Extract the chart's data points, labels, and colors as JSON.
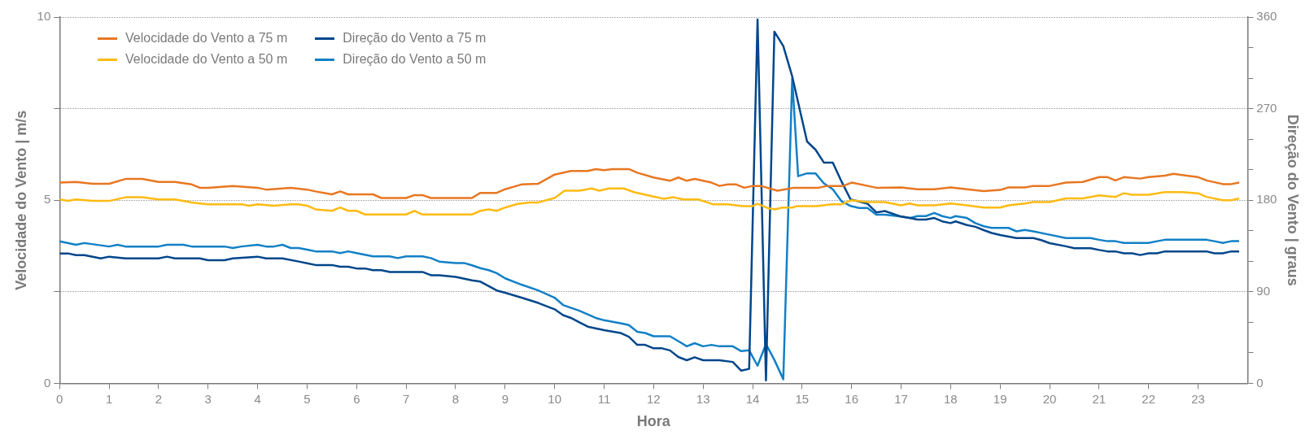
{
  "chart_data": {
    "type": "line",
    "xlabel": "Hora",
    "ylabel": "Velocidade do Vento | m/s",
    "y2label": "Direção do Vento | graus",
    "xlim": [
      0,
      24
    ],
    "xticks": [
      0,
      1,
      2,
      3,
      4,
      5,
      6,
      7,
      8,
      9,
      10,
      11,
      12,
      13,
      14,
      15,
      16,
      17,
      18,
      19,
      20,
      21,
      22,
      23
    ],
    "ylim": [
      0,
      10
    ],
    "yticks": [
      0,
      {
        "value": 2.5,
        "label": null
      },
      5,
      {
        "value": 7.5,
        "label": null
      },
      10
    ],
    "y2lim": [
      0,
      360
    ],
    "y2ticks": [
      0,
      {
        "value": 30,
        "label": null
      },
      {
        "value": 60,
        "label": null
      },
      90,
      {
        "value": 120,
        "label": null
      },
      {
        "value": 150,
        "label": null
      },
      180,
      {
        "value": 210,
        "label": null
      },
      {
        "value": 240,
        "label": null
      },
      270,
      {
        "value": 300,
        "label": null
      },
      {
        "value": 330,
        "label": null
      },
      360
    ],
    "grid": "y",
    "legend": "top left",
    "marker": "none",
    "line_style": "solid",
    "series": [
      {
        "name": "Velocidade do Vento a 75 m",
        "color": "#e87722",
        "x": [
          0,
          0.33,
          0.67,
          1,
          1.33,
          1.67,
          2,
          2.33,
          2.67,
          2.83,
          3,
          3.5,
          4,
          4.17,
          4.67,
          5,
          5.17,
          5.5,
          5.67,
          5.83,
          6,
          6.33,
          6.5,
          7,
          7.17,
          7.33,
          7.5,
          8,
          8.33,
          8.5,
          8.83,
          9,
          9.33,
          9.67,
          10,
          10.33,
          10.67,
          10.83,
          11,
          11.17,
          11.5,
          11.67,
          12,
          12.33,
          12.5,
          12.67,
          12.83,
          13,
          13.17,
          13.33,
          13.5,
          13.67,
          13.83,
          14,
          14.17,
          14.5,
          14.67,
          14.83,
          15,
          15.33,
          15.5,
          15.83,
          16,
          16.33,
          16.5,
          17,
          17.33,
          17.67,
          18,
          18.33,
          18.67,
          19,
          19.17,
          19.5,
          19.67,
          20,
          20.33,
          20.67,
          21,
          21.17,
          21.33,
          21.5,
          21.83,
          22,
          22.33,
          22.5,
          22.83,
          23,
          23.17,
          23.5,
          23.67,
          23.83
        ],
        "values": [
          5.48,
          5.5,
          5.45,
          5.45,
          5.58,
          5.58,
          5.5,
          5.5,
          5.43,
          5.34,
          5.34,
          5.39,
          5.34,
          5.29,
          5.34,
          5.29,
          5.24,
          5.16,
          5.24,
          5.16,
          5.16,
          5.16,
          5.06,
          5.06,
          5.14,
          5.14,
          5.06,
          5.06,
          5.06,
          5.2,
          5.2,
          5.3,
          5.43,
          5.45,
          5.7,
          5.8,
          5.8,
          5.85,
          5.82,
          5.85,
          5.85,
          5.75,
          5.62,
          5.53,
          5.62,
          5.53,
          5.58,
          5.53,
          5.48,
          5.39,
          5.43,
          5.43,
          5.34,
          5.39,
          5.39,
          5.26,
          5.3,
          5.34,
          5.34,
          5.34,
          5.39,
          5.39,
          5.48,
          5.39,
          5.34,
          5.35,
          5.3,
          5.3,
          5.35,
          5.3,
          5.25,
          5.28,
          5.35,
          5.35,
          5.39,
          5.39,
          5.48,
          5.5,
          5.63,
          5.63,
          5.54,
          5.63,
          5.59,
          5.63,
          5.67,
          5.72,
          5.66,
          5.63,
          5.54,
          5.44,
          5.44,
          5.48
        ]
      },
      {
        "name": "Velocidade do Vento a 50 m",
        "color": "#fdbb13",
        "x": [
          0,
          0.17,
          0.33,
          0.67,
          1,
          1.33,
          1.67,
          2,
          2.33,
          2.67,
          3,
          3.67,
          3.83,
          4,
          4.33,
          4.67,
          4.83,
          5,
          5.17,
          5.5,
          5.67,
          5.83,
          6,
          6.17,
          7,
          7.17,
          7.33,
          8,
          8.33,
          8.5,
          8.67,
          8.83,
          9,
          9.25,
          9.5,
          9.67,
          10,
          10.2,
          10.5,
          10.75,
          10.9,
          11.1,
          11.4,
          11.6,
          12,
          12.2,
          12.4,
          12.6,
          12.9,
          13.2,
          13.5,
          13.8,
          14,
          14.1,
          14.3,
          14.45,
          14.6,
          14.8,
          14.9,
          15.3,
          15.6,
          15.8,
          16,
          16.33,
          16.67,
          17,
          17.17,
          17.33,
          17.67,
          18,
          18.33,
          18.67,
          19,
          19.17,
          19.5,
          19.67,
          20,
          20.33,
          20.67,
          21,
          21.33,
          21.5,
          21.67,
          22,
          22.33,
          22.67,
          23,
          23.17,
          23.5,
          23.67,
          23.83
        ],
        "values": [
          5.02,
          4.98,
          5.02,
          4.98,
          4.98,
          5.08,
          5.08,
          5.02,
          5.02,
          4.94,
          4.89,
          4.89,
          4.85,
          4.89,
          4.85,
          4.89,
          4.89,
          4.85,
          4.75,
          4.71,
          4.8,
          4.71,
          4.71,
          4.61,
          4.61,
          4.71,
          4.61,
          4.61,
          4.61,
          4.71,
          4.75,
          4.71,
          4.8,
          4.9,
          4.94,
          4.94,
          5.06,
          5.26,
          5.26,
          5.32,
          5.26,
          5.32,
          5.32,
          5.22,
          5.1,
          5.04,
          5.08,
          5.02,
          5.02,
          4.89,
          4.89,
          4.84,
          4.84,
          4.9,
          4.79,
          4.75,
          4.8,
          4.8,
          4.84,
          4.84,
          4.89,
          4.89,
          5.0,
          4.95,
          4.95,
          4.86,
          4.91,
          4.86,
          4.86,
          4.91,
          4.86,
          4.8,
          4.8,
          4.86,
          4.91,
          4.95,
          4.95,
          5.05,
          5.05,
          5.13,
          5.09,
          5.19,
          5.15,
          5.15,
          5.22,
          5.22,
          5.19,
          5.09,
          5.0,
          5.0,
          5.05
        ]
      },
      {
        "name": "Direção do Vento a 75 m",
        "color": "#00468b",
        "axis": "y2",
        "x": [
          0,
          0.17,
          0.33,
          0.5,
          0.83,
          1,
          1.33,
          2,
          2.17,
          2.33,
          2.83,
          3,
          3.33,
          3.5,
          4,
          4.17,
          4.5,
          4.83,
          5,
          5.17,
          5.5,
          5.67,
          5.83,
          6,
          6.17,
          6.33,
          6.5,
          6.67,
          7,
          7.33,
          7.5,
          7.67,
          8,
          8.33,
          8.5,
          8.67,
          8.83,
          9,
          9.33,
          9.67,
          10,
          10.17,
          10.33,
          10.5,
          10.67,
          11,
          11.33,
          11.5,
          11.67,
          11.83,
          12,
          12.17,
          12.33,
          12.5,
          12.67,
          12.83,
          13,
          13.33,
          13.6,
          13.77,
          13.93,
          14.1,
          14.27,
          14.44,
          14.62,
          14.8,
          15.1,
          15.27,
          15.44,
          15.62,
          15.8,
          15.98,
          16.15,
          16.32,
          16.5,
          16.67,
          17,
          17.17,
          17.33,
          17.5,
          17.67,
          17.83,
          18,
          18.1,
          18.33,
          18.5,
          18.67,
          18.83,
          19,
          19.33,
          19.67,
          19.83,
          20,
          20.33,
          20.5,
          20.83,
          21,
          21.17,
          21.33,
          21.5,
          21.67,
          21.83,
          22,
          22.17,
          22.33,
          23,
          23.17,
          23.33,
          23.5,
          23.67,
          23.83
        ],
        "values": [
          127.7,
          127.7,
          126,
          126,
          122.8,
          124.5,
          122.8,
          122.8,
          124.5,
          122.8,
          122.8,
          121,
          121,
          122.8,
          124.5,
          122.8,
          122.8,
          119.7,
          118,
          116.3,
          116.3,
          114.6,
          114.6,
          112.9,
          112.9,
          111.2,
          111.2,
          109.5,
          109.5,
          109.5,
          106.3,
          106.3,
          104.6,
          101.2,
          100,
          95.5,
          91.3,
          89,
          84.2,
          79,
          72.8,
          67.1,
          64.3,
          60,
          55.7,
          52.3,
          49.5,
          45.8,
          37.8,
          37.8,
          34.4,
          34.4,
          32.4,
          25.9,
          22.7,
          25.6,
          22.7,
          22.7,
          21,
          12.5,
          14.2,
          357.7,
          3,
          345.7,
          331.5,
          301.7,
          237.7,
          229.7,
          217,
          217,
          198,
          180.8,
          178.8,
          176.6,
          168,
          169.4,
          163.9,
          162.5,
          161,
          161,
          162.5,
          159.2,
          157.5,
          159.2,
          155.6,
          153.9,
          150.6,
          147.8,
          145.8,
          142.8,
          142.8,
          140.8,
          137.8,
          134.7,
          132.8,
          132.8,
          131.1,
          129.7,
          129.7,
          127.8,
          127.8,
          126.1,
          127.8,
          127.8,
          129.7,
          129.7,
          129.7,
          127.8,
          127.8,
          129.7,
          129.7
        ]
      },
      {
        "name": "Direção do Vento a 50 m",
        "color": "#1280c6",
        "axis": "y2",
        "x": [
          0,
          0.33,
          0.5,
          1,
          1.17,
          1.33,
          2,
          2.17,
          2.5,
          2.67,
          3,
          3.33,
          3.5,
          3.67,
          4,
          4.17,
          4.33,
          4.5,
          4.67,
          4.83,
          5,
          5.17,
          5.5,
          5.67,
          5.83,
          6,
          6.33,
          6.67,
          6.83,
          7,
          7.33,
          7.5,
          7.67,
          8,
          8.17,
          8.33,
          8.5,
          8.67,
          8.83,
          9,
          9.33,
          9.67,
          10,
          10.17,
          10.5,
          10.83,
          11,
          11.33,
          11.5,
          11.67,
          11.83,
          12,
          12.33,
          12.5,
          12.67,
          12.83,
          13,
          13.17,
          13.33,
          13.6,
          13.77,
          13.93,
          14.1,
          14.27,
          14.44,
          14.62,
          14.8,
          14.92,
          15.1,
          15.27,
          15.44,
          15.62,
          15.8,
          15.98,
          16.15,
          16.32,
          16.5,
          16.67,
          17,
          17.17,
          17.33,
          17.5,
          17.67,
          17.83,
          18,
          18.1,
          18.33,
          18.5,
          18.67,
          18.83,
          19,
          19.17,
          19.33,
          19.5,
          19.67,
          20,
          20.33,
          20.67,
          20.83,
          21,
          21.17,
          21.33,
          21.5,
          22,
          22.17,
          22.33,
          23.17,
          23.33,
          23.5,
          23.67,
          23.83
        ],
        "values": [
          139.6,
          136.2,
          137.9,
          134.5,
          136.2,
          134.5,
          134.5,
          136.2,
          136.2,
          134.5,
          134.5,
          134.5,
          133,
          134.5,
          136.2,
          134.5,
          134.5,
          136.2,
          133,
          133,
          131.4,
          129.7,
          129.7,
          128,
          129.7,
          128,
          124.8,
          124.8,
          123.1,
          124.8,
          124.8,
          123.1,
          119.7,
          118.3,
          118.3,
          116,
          113.2,
          111.2,
          108.3,
          103.2,
          97,
          91.3,
          84.2,
          77,
          71.4,
          64.3,
          62,
          59.1,
          57.2,
          50.6,
          49.5,
          46.3,
          46.3,
          41.5,
          36.4,
          39.5,
          36.4,
          37.8,
          36.4,
          36.4,
          31.6,
          32.4,
          17.3,
          38.7,
          23,
          4,
          299.7,
          203.6,
          206.4,
          206.4,
          196.5,
          190.8,
          178.8,
          174.3,
          172.3,
          172.3,
          165.8,
          165.8,
          163.9,
          162.5,
          164.4,
          164.4,
          167.5,
          164.4,
          162.5,
          164.4,
          162.5,
          157.5,
          154.4,
          152.8,
          152.8,
          152.8,
          149.4,
          150.8,
          149.4,
          146.1,
          142.8,
          142.8,
          142.8,
          141.1,
          139.7,
          139.7,
          138,
          138,
          139.7,
          141.1,
          141.1,
          139.7,
          138,
          139.7,
          139.7
        ]
      }
    ]
  }
}
